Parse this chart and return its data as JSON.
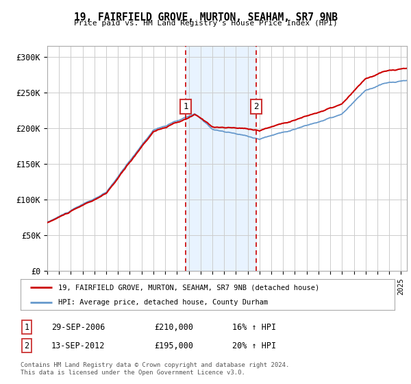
{
  "title": "19, FAIRFIELD GROVE, MURTON, SEAHAM, SR7 9NB",
  "subtitle": "Price paid vs. HM Land Registry's House Price Index (HPI)",
  "ylabel_ticks": [
    "£0",
    "£50K",
    "£100K",
    "£150K",
    "£200K",
    "£250K",
    "£300K"
  ],
  "ytick_values": [
    0,
    50000,
    100000,
    150000,
    200000,
    250000,
    300000
  ],
  "ylim": [
    0,
    315000
  ],
  "xlim_start": 1995.0,
  "xlim_end": 2025.5,
  "transaction1": {
    "date_num": 2006.75,
    "price": 210000,
    "label": "1",
    "date_str": "29-SEP-2006",
    "hpi_pct": "16%"
  },
  "transaction2": {
    "date_num": 2012.71,
    "price": 195000,
    "label": "2",
    "date_str": "13-SEP-2012",
    "hpi_pct": "20%"
  },
  "legend_line1": "19, FAIRFIELD GROVE, MURTON, SEAHAM, SR7 9NB (detached house)",
  "legend_line2": "HPI: Average price, detached house, County Durham",
  "footnote": "Contains HM Land Registry data © Crown copyright and database right 2024.\nThis data is licensed under the Open Government Licence v3.0.",
  "table_row1": [
    "1",
    "29-SEP-2006",
    "£210,000",
    "16% ↑ HPI"
  ],
  "table_row2": [
    "2",
    "13-SEP-2012",
    "£195,000",
    "20% ↑ HPI"
  ],
  "red_color": "#cc0000",
  "blue_color": "#6699cc",
  "bg_shade": "#ddeeff",
  "grid_color": "#cccccc",
  "box_color": "#cc3333"
}
